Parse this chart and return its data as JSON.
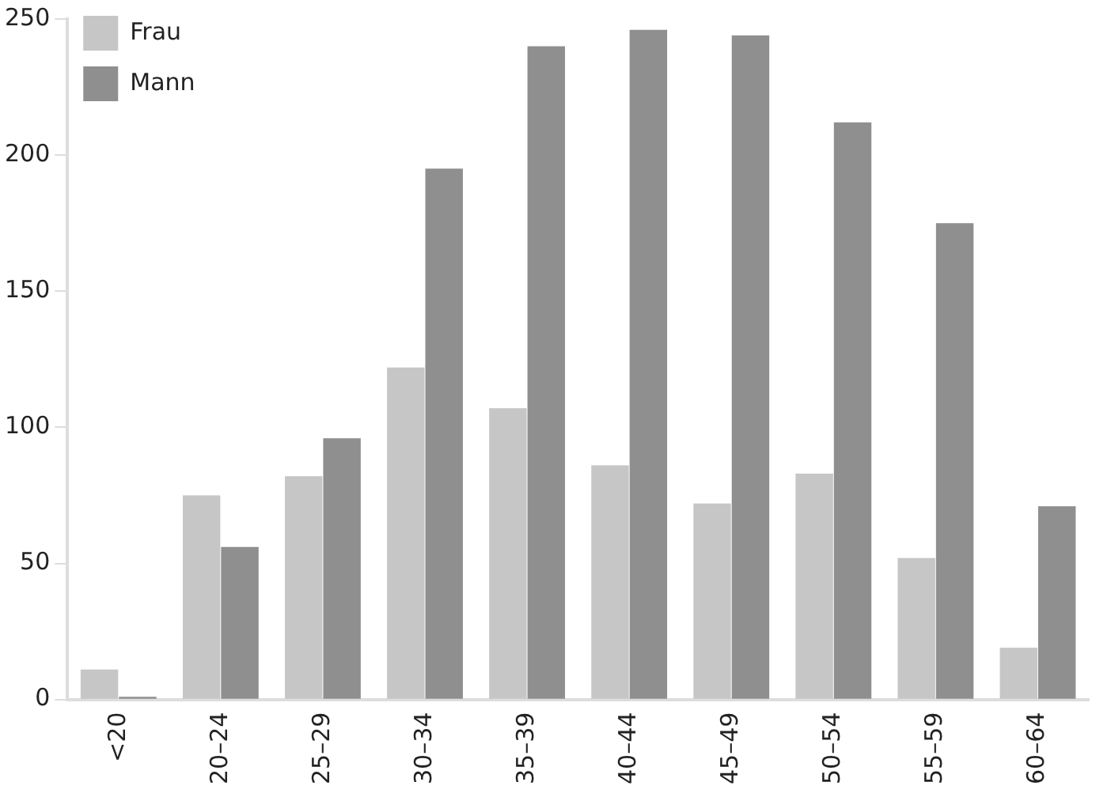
{
  "chart_data": {
    "type": "bar",
    "categories": [
      "<20",
      "20–24",
      "25–29",
      "30–34",
      "35–39",
      "40–44",
      "45–49",
      "50–54",
      "55–59",
      "60–64"
    ],
    "series": [
      {
        "name": "Frau",
        "color": "#c6c6c6",
        "values": [
          11,
          75,
          82,
          122,
          107,
          86,
          72,
          83,
          52,
          19
        ]
      },
      {
        "name": "Mann",
        "color": "#8f8f8f",
        "values": [
          1,
          56,
          96,
          195,
          240,
          246,
          244,
          212,
          175,
          71
        ]
      }
    ],
    "ylim": [
      0,
      250
    ],
    "yticks": [
      0,
      50,
      100,
      150,
      200,
      250
    ],
    "legend": "top left"
  }
}
